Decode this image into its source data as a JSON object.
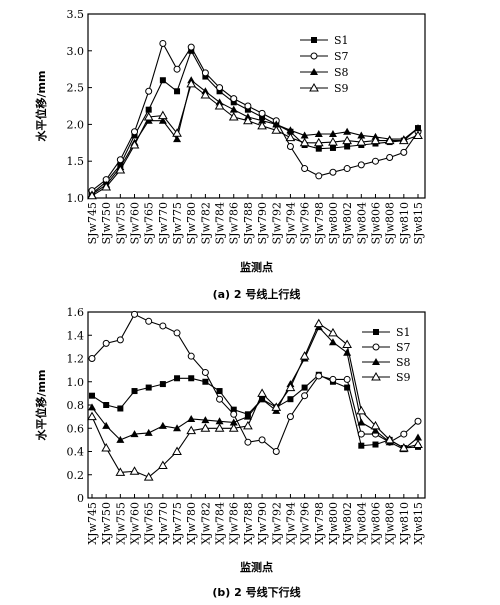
{
  "chart_data": [
    {
      "type": "line",
      "caption": "(a) 2 号线上行线",
      "xlabel": "监测点",
      "ylabel": "水平位移/mm",
      "ylim": [
        1.0,
        3.5
      ],
      "yticks": [
        "1.0",
        "1.5",
        "2.0",
        "2.5",
        "3.0",
        "3.5"
      ],
      "categories": [
        "SJw745",
        "SJw750",
        "SJw755",
        "SJw760",
        "SJw765",
        "SJw770",
        "SJw775",
        "SJw780",
        "SJw782",
        "SJw784",
        "SJw786",
        "SJw788",
        "SJw790",
        "SJw792",
        "SJw794",
        "SJw796",
        "SJw798",
        "SJw800",
        "SJw802",
        "SJw804",
        "SJw806",
        "SJw808",
        "SJw810",
        "SJw815"
      ],
      "legend_position": "top-right",
      "series": [
        {
          "name": "S1",
          "marker": "square",
          "values": [
            1.06,
            1.22,
            1.45,
            1.85,
            2.2,
            2.6,
            2.45,
            3.0,
            2.65,
            2.45,
            2.3,
            2.2,
            2.1,
            2.0,
            1.9,
            1.72,
            1.67,
            1.68,
            1.7,
            1.72,
            1.74,
            1.76,
            1.78,
            1.95
          ]
        },
        {
          "name": "S7",
          "marker": "circle",
          "values": [
            1.1,
            1.25,
            1.52,
            1.9,
            2.45,
            3.1,
            2.75,
            3.05,
            2.7,
            2.5,
            2.35,
            2.25,
            2.15,
            2.05,
            1.7,
            1.4,
            1.3,
            1.35,
            1.4,
            1.45,
            1.5,
            1.55,
            1.62,
            1.9
          ]
        },
        {
          "name": "S8",
          "marker": "triangle-filled",
          "values": [
            1.05,
            1.18,
            1.42,
            1.75,
            2.05,
            2.05,
            1.8,
            2.6,
            2.45,
            2.3,
            2.2,
            2.1,
            2.05,
            2.0,
            1.92,
            1.85,
            1.87,
            1.87,
            1.9,
            1.85,
            1.83,
            1.8,
            1.8,
            1.95
          ]
        },
        {
          "name": "S9",
          "marker": "triangle-open",
          "values": [
            1.03,
            1.15,
            1.38,
            1.72,
            2.1,
            2.12,
            1.88,
            2.55,
            2.4,
            2.25,
            2.1,
            2.05,
            1.98,
            1.92,
            1.82,
            1.75,
            1.75,
            1.76,
            1.78,
            1.76,
            1.78,
            1.78,
            1.78,
            1.85
          ]
        }
      ]
    },
    {
      "type": "line",
      "caption": "(b) 2 号线下行线",
      "xlabel": "监测点",
      "ylabel": "水平位移/mm",
      "ylim": [
        0,
        1.6
      ],
      "yticks": [
        "0",
        "0.2",
        "0.4",
        "0.6",
        "0.8",
        "1.0",
        "1.2",
        "1.4",
        "1.6"
      ],
      "categories": [
        "XJw745",
        "XJw750",
        "XJw755",
        "XJw760",
        "XJw765",
        "XJw770",
        "XJw775",
        "XJw780",
        "XJw782",
        "XJw784",
        "XJw786",
        "XJw788",
        "XJw790",
        "XJw792",
        "XJw794",
        "XJw796",
        "XJw798",
        "XJw800",
        "XJw802",
        "XJw804",
        "XJw806",
        "XJw808",
        "XJw810",
        "XJw815"
      ],
      "legend_position": "right",
      "series": [
        {
          "name": "S1",
          "marker": "square",
          "values": [
            0.88,
            0.8,
            0.77,
            0.92,
            0.95,
            0.98,
            1.03,
            1.03,
            1.0,
            0.92,
            0.76,
            0.72,
            0.85,
            0.78,
            0.85,
            0.95,
            1.06,
            1.0,
            0.95,
            0.45,
            0.46,
            0.5,
            0.43,
            0.44
          ]
        },
        {
          "name": "S7",
          "marker": "circle",
          "values": [
            1.2,
            1.33,
            1.36,
            1.58,
            1.52,
            1.48,
            1.42,
            1.22,
            1.08,
            0.85,
            0.72,
            0.48,
            0.5,
            0.4,
            0.7,
            0.88,
            1.05,
            1.02,
            1.02,
            0.55,
            0.55,
            0.48,
            0.55,
            0.66
          ]
        },
        {
          "name": "S8",
          "marker": "triangle-filled",
          "values": [
            0.78,
            0.62,
            0.5,
            0.55,
            0.56,
            0.62,
            0.6,
            0.68,
            0.67,
            0.66,
            0.65,
            0.7,
            0.85,
            0.75,
            0.98,
            1.2,
            1.47,
            1.34,
            1.25,
            0.65,
            0.58,
            0.48,
            0.42,
            0.52
          ]
        },
        {
          "name": "S9",
          "marker": "triangle-open",
          "values": [
            0.7,
            0.43,
            0.22,
            0.23,
            0.18,
            0.28,
            0.4,
            0.58,
            0.6,
            0.6,
            0.6,
            0.62,
            0.9,
            0.78,
            0.95,
            1.22,
            1.5,
            1.42,
            1.32,
            0.75,
            0.62,
            0.5,
            0.43,
            0.46
          ]
        }
      ]
    }
  ]
}
